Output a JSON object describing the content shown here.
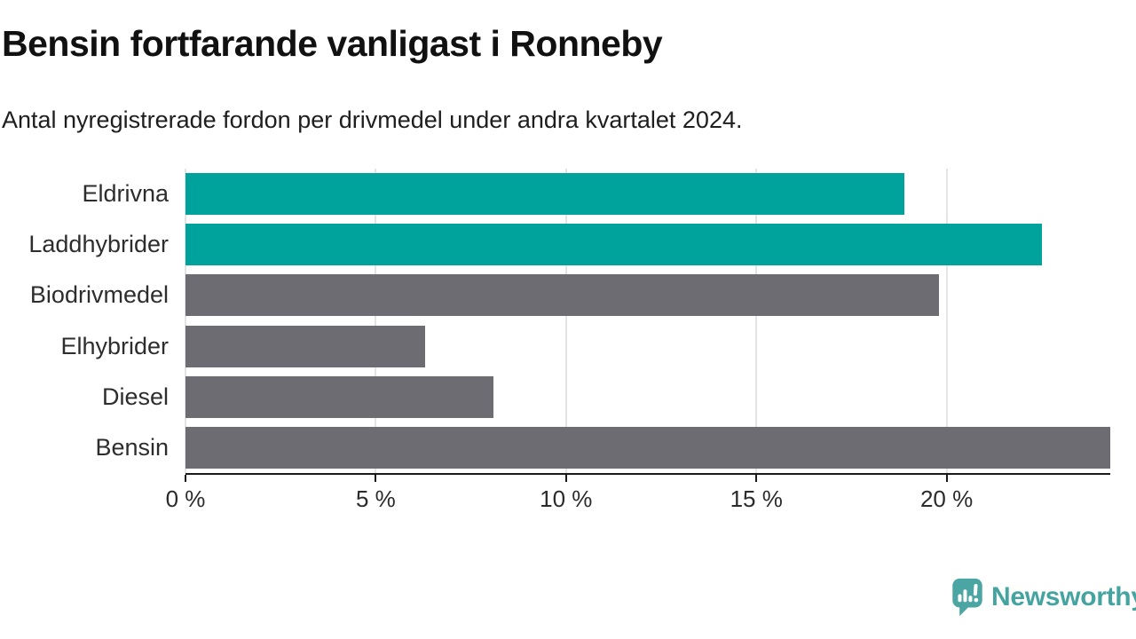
{
  "header": {
    "title": "Bensin fortfarande vanligast i Ronneby",
    "subtitle": "Antal nyregistrerade fordon per drivmedel under andra kvartalet 2024."
  },
  "chart_data": {
    "type": "bar",
    "orientation": "horizontal",
    "title": "Bensin fortfarande vanligast i Ronneby",
    "subtitle": "Antal nyregistrerade fordon per drivmedel under andra kvartalet 2024.",
    "categories": [
      "Eldrivna",
      "Laddhybrider",
      "Biodrivmedel",
      "Elhybrider",
      "Diesel",
      "Bensin"
    ],
    "values": [
      18.9,
      22.5,
      19.8,
      6.3,
      8.1,
      24.3
    ],
    "unit": "%",
    "xlim": [
      0,
      24.3
    ],
    "x_ticks": [
      0,
      5,
      10,
      15,
      20
    ],
    "x_tick_labels": [
      "0 %",
      "5 %",
      "10 %",
      "15 %",
      "20 %"
    ],
    "bar_colors": [
      "#00a29c",
      "#00a29c",
      "#6c6c72",
      "#6c6c72",
      "#6c6c72",
      "#6c6c72"
    ],
    "highlight_color": "#00a29c",
    "default_color": "#6c6c72",
    "gridline_color": "#e4e4e4",
    "axis_color": "#1a1a1a",
    "grid": true,
    "legend": false
  },
  "footer": {
    "brand": "Newsworthy",
    "brand_color": "#45a4a0",
    "logo_icon": "speech-bubble-bar-chart-icon"
  }
}
